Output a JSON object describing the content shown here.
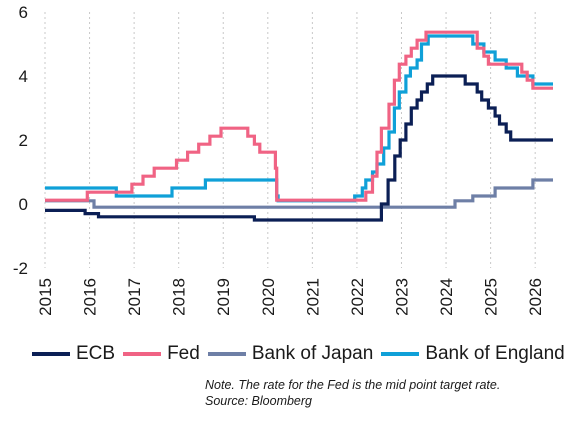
{
  "chart_data": {
    "type": "line",
    "title": "",
    "xlabel": "",
    "ylabel": "",
    "xlim": [
      2015.0,
      2026.4
    ],
    "ylim": [
      -2,
      6
    ],
    "yticks": [
      -2,
      0,
      2,
      4,
      6
    ],
    "ytick_labels": [
      "-2",
      "0",
      "2",
      "4",
      "6"
    ],
    "xticks": [
      2015,
      2016,
      2017,
      2018,
      2019,
      2020,
      2021,
      2022,
      2023,
      2024,
      2025,
      2026
    ],
    "xtick_labels": [
      "2015",
      "2016",
      "2017",
      "2018",
      "2019",
      "2020",
      "2021",
      "2022",
      "2023",
      "2024",
      "2025",
      "2026"
    ],
    "grid": "vertical",
    "legend_position": "bottom",
    "series": [
      {
        "name": "ECB",
        "color": "#0b1f55",
        "points": [
          [
            2015.0,
            -0.2
          ],
          [
            2015.9,
            -0.2
          ],
          [
            2015.9,
            -0.3
          ],
          [
            2016.2,
            -0.3
          ],
          [
            2016.2,
            -0.4
          ],
          [
            2019.7,
            -0.4
          ],
          [
            2019.7,
            -0.5
          ],
          [
            2022.55,
            -0.5
          ],
          [
            2022.55,
            0.0
          ],
          [
            2022.7,
            0.0
          ],
          [
            2022.7,
            0.75
          ],
          [
            2022.85,
            0.75
          ],
          [
            2022.85,
            1.5
          ],
          [
            2022.97,
            1.5
          ],
          [
            2022.97,
            2.0
          ],
          [
            2023.1,
            2.0
          ],
          [
            2023.1,
            2.5
          ],
          [
            2023.22,
            2.5
          ],
          [
            2023.22,
            3.0
          ],
          [
            2023.35,
            3.0
          ],
          [
            2023.35,
            3.25
          ],
          [
            2023.45,
            3.25
          ],
          [
            2023.45,
            3.5
          ],
          [
            2023.58,
            3.5
          ],
          [
            2023.58,
            3.75
          ],
          [
            2023.7,
            3.75
          ],
          [
            2023.7,
            4.0
          ],
          [
            2024.43,
            4.0
          ],
          [
            2024.43,
            3.75
          ],
          [
            2024.7,
            3.75
          ],
          [
            2024.7,
            3.5
          ],
          [
            2024.8,
            3.5
          ],
          [
            2024.8,
            3.25
          ],
          [
            2024.95,
            3.25
          ],
          [
            2024.95,
            3.0
          ],
          [
            2025.1,
            3.0
          ],
          [
            2025.1,
            2.75
          ],
          [
            2025.2,
            2.75
          ],
          [
            2025.2,
            2.5
          ],
          [
            2025.35,
            2.5
          ],
          [
            2025.35,
            2.25
          ],
          [
            2025.45,
            2.25
          ],
          [
            2025.45,
            2.0
          ],
          [
            2026.4,
            2.0
          ]
        ]
      },
      {
        "name": "Fed",
        "color": "#f06384",
        "points": [
          [
            2015.0,
            0.12
          ],
          [
            2015.95,
            0.12
          ],
          [
            2015.95,
            0.37
          ],
          [
            2016.95,
            0.37
          ],
          [
            2016.95,
            0.62
          ],
          [
            2017.2,
            0.62
          ],
          [
            2017.2,
            0.87
          ],
          [
            2017.45,
            0.87
          ],
          [
            2017.45,
            1.12
          ],
          [
            2017.95,
            1.12
          ],
          [
            2017.95,
            1.37
          ],
          [
            2018.2,
            1.37
          ],
          [
            2018.2,
            1.62
          ],
          [
            2018.45,
            1.62
          ],
          [
            2018.45,
            1.87
          ],
          [
            2018.7,
            1.87
          ],
          [
            2018.7,
            2.12
          ],
          [
            2018.95,
            2.12
          ],
          [
            2018.95,
            2.37
          ],
          [
            2019.55,
            2.37
          ],
          [
            2019.55,
            2.12
          ],
          [
            2019.7,
            2.12
          ],
          [
            2019.7,
            1.87
          ],
          [
            2019.82,
            1.87
          ],
          [
            2019.82,
            1.62
          ],
          [
            2020.17,
            1.62
          ],
          [
            2020.17,
            1.12
          ],
          [
            2020.2,
            1.12
          ],
          [
            2020.2,
            0.12
          ],
          [
            2022.2,
            0.12
          ],
          [
            2022.2,
            0.37
          ],
          [
            2022.35,
            0.37
          ],
          [
            2022.35,
            0.87
          ],
          [
            2022.45,
            0.87
          ],
          [
            2022.45,
            1.62
          ],
          [
            2022.55,
            1.62
          ],
          [
            2022.55,
            2.37
          ],
          [
            2022.72,
            2.37
          ],
          [
            2022.72,
            3.12
          ],
          [
            2022.84,
            3.12
          ],
          [
            2022.84,
            3.87
          ],
          [
            2022.95,
            3.87
          ],
          [
            2022.95,
            4.37
          ],
          [
            2023.1,
            4.37
          ],
          [
            2023.1,
            4.62
          ],
          [
            2023.22,
            4.62
          ],
          [
            2023.22,
            4.87
          ],
          [
            2023.35,
            4.87
          ],
          [
            2023.35,
            5.12
          ],
          [
            2023.55,
            5.12
          ],
          [
            2023.55,
            5.37
          ],
          [
            2024.7,
            5.37
          ],
          [
            2024.7,
            4.87
          ],
          [
            2024.85,
            4.87
          ],
          [
            2024.85,
            4.62
          ],
          [
            2024.95,
            4.62
          ],
          [
            2024.95,
            4.37
          ],
          [
            2025.7,
            4.37
          ],
          [
            2025.7,
            4.12
          ],
          [
            2025.82,
            4.12
          ],
          [
            2025.82,
            3.87
          ],
          [
            2025.95,
            3.87
          ],
          [
            2025.95,
            3.62
          ],
          [
            2026.4,
            3.62
          ]
        ]
      },
      {
        "name": "Bank of Japan",
        "color": "#6e7fa6",
        "points": [
          [
            2015.0,
            0.1
          ],
          [
            2016.1,
            0.1
          ],
          [
            2016.1,
            -0.1
          ],
          [
            2024.2,
            -0.1
          ],
          [
            2024.2,
            0.1
          ],
          [
            2024.6,
            0.1
          ],
          [
            2024.6,
            0.25
          ],
          [
            2025.1,
            0.25
          ],
          [
            2025.1,
            0.5
          ],
          [
            2025.95,
            0.5
          ],
          [
            2025.95,
            0.75
          ],
          [
            2026.4,
            0.75
          ]
        ]
      },
      {
        "name": "Bank of England",
        "color": "#0fa0d8",
        "points": [
          [
            2015.0,
            0.5
          ],
          [
            2016.6,
            0.5
          ],
          [
            2016.6,
            0.25
          ],
          [
            2017.85,
            0.25
          ],
          [
            2017.85,
            0.5
          ],
          [
            2018.6,
            0.5
          ],
          [
            2018.6,
            0.75
          ],
          [
            2020.2,
            0.75
          ],
          [
            2020.2,
            0.25
          ],
          [
            2020.23,
            0.25
          ],
          [
            2020.23,
            0.1
          ],
          [
            2021.95,
            0.1
          ],
          [
            2021.95,
            0.25
          ],
          [
            2022.12,
            0.25
          ],
          [
            2022.12,
            0.5
          ],
          [
            2022.2,
            0.5
          ],
          [
            2022.2,
            0.75
          ],
          [
            2022.35,
            0.75
          ],
          [
            2022.35,
            1.0
          ],
          [
            2022.45,
            1.0
          ],
          [
            2022.45,
            1.25
          ],
          [
            2022.6,
            1.25
          ],
          [
            2022.6,
            1.75
          ],
          [
            2022.72,
            1.75
          ],
          [
            2022.72,
            2.25
          ],
          [
            2022.84,
            2.25
          ],
          [
            2022.84,
            3.0
          ],
          [
            2022.95,
            3.0
          ],
          [
            2022.95,
            3.5
          ],
          [
            2023.1,
            3.5
          ],
          [
            2023.1,
            4.0
          ],
          [
            2023.2,
            4.0
          ],
          [
            2023.2,
            4.25
          ],
          [
            2023.35,
            4.25
          ],
          [
            2023.35,
            4.5
          ],
          [
            2023.45,
            4.5
          ],
          [
            2023.45,
            5.0
          ],
          [
            2023.6,
            5.0
          ],
          [
            2023.6,
            5.25
          ],
          [
            2024.6,
            5.25
          ],
          [
            2024.6,
            5.0
          ],
          [
            2024.85,
            5.0
          ],
          [
            2024.85,
            4.75
          ],
          [
            2025.1,
            4.75
          ],
          [
            2025.1,
            4.5
          ],
          [
            2025.35,
            4.5
          ],
          [
            2025.35,
            4.25
          ],
          [
            2025.6,
            4.25
          ],
          [
            2025.6,
            4.0
          ],
          [
            2025.95,
            4.0
          ],
          [
            2025.95,
            3.75
          ],
          [
            2026.4,
            3.75
          ]
        ]
      }
    ]
  },
  "note": {
    "line1": "Note. The rate for the Fed is the mid point target rate.",
    "line2": "Source: Bloomberg"
  }
}
